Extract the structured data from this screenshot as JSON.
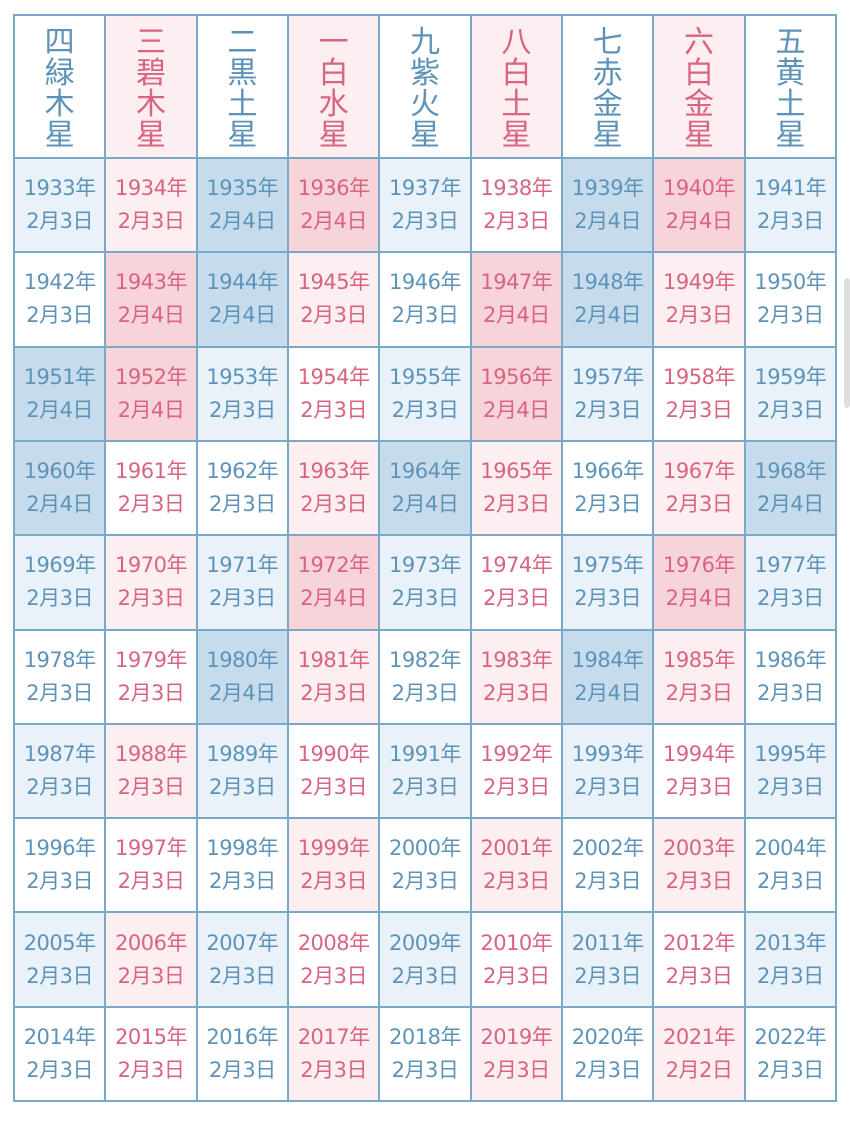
{
  "headers": [
    "四緑木星",
    "三碧木星",
    "二黒土星",
    "一白水星",
    "九紫火星",
    "八白土星",
    "七赤金星",
    "六白金星",
    "五黄土星"
  ],
  "header_colors": [
    "blue",
    "pink",
    "blue",
    "pink",
    "blue",
    "pink",
    "blue",
    "pink",
    "blue"
  ],
  "rows": [
    [
      {
        "year": "1933年",
        "date": "2月3日"
      },
      {
        "year": "1934年",
        "date": "2月3日"
      },
      {
        "year": "1935年",
        "date": "2月4日"
      },
      {
        "year": "1936年",
        "date": "2月4日"
      },
      {
        "year": "1937年",
        "date": "2月3日"
      },
      {
        "year": "1938年",
        "date": "2月3日"
      },
      {
        "year": "1939年",
        "date": "2月4日"
      },
      {
        "year": "1940年",
        "date": "2月4日"
      },
      {
        "year": "1941年",
        "date": "2月3日"
      }
    ],
    [
      {
        "year": "1942年",
        "date": "2月3日"
      },
      {
        "year": "1943年",
        "date": "2月4日"
      },
      {
        "year": "1944年",
        "date": "2月4日"
      },
      {
        "year": "1945年",
        "date": "2月3日"
      },
      {
        "year": "1946年",
        "date": "2月3日"
      },
      {
        "year": "1947年",
        "date": "2月4日"
      },
      {
        "year": "1948年",
        "date": "2月4日"
      },
      {
        "year": "1949年",
        "date": "2月3日"
      },
      {
        "year": "1950年",
        "date": "2月3日"
      }
    ],
    [
      {
        "year": "1951年",
        "date": "2月4日"
      },
      {
        "year": "1952年",
        "date": "2月4日"
      },
      {
        "year": "1953年",
        "date": "2月3日"
      },
      {
        "year": "1954年",
        "date": "2月3日"
      },
      {
        "year": "1955年",
        "date": "2月3日"
      },
      {
        "year": "1956年",
        "date": "2月4日"
      },
      {
        "year": "1957年",
        "date": "2月3日"
      },
      {
        "year": "1958年",
        "date": "2月3日"
      },
      {
        "year": "1959年",
        "date": "2月3日"
      }
    ],
    [
      {
        "year": "1960年",
        "date": "2月4日"
      },
      {
        "year": "1961年",
        "date": "2月3日"
      },
      {
        "year": "1962年",
        "date": "2月3日"
      },
      {
        "year": "1963年",
        "date": "2月3日"
      },
      {
        "year": "1964年",
        "date": "2月4日"
      },
      {
        "year": "1965年",
        "date": "2月3日"
      },
      {
        "year": "1966年",
        "date": "2月3日"
      },
      {
        "year": "1967年",
        "date": "2月3日"
      },
      {
        "year": "1968年",
        "date": "2月4日"
      }
    ],
    [
      {
        "year": "1969年",
        "date": "2月3日"
      },
      {
        "year": "1970年",
        "date": "2月3日"
      },
      {
        "year": "1971年",
        "date": "2月3日"
      },
      {
        "year": "1972年",
        "date": "2月4日"
      },
      {
        "year": "1973年",
        "date": "2月3日"
      },
      {
        "year": "1974年",
        "date": "2月3日"
      },
      {
        "year": "1975年",
        "date": "2月3日"
      },
      {
        "year": "1976年",
        "date": "2月4日"
      },
      {
        "year": "1977年",
        "date": "2月3日"
      }
    ],
    [
      {
        "year": "1978年",
        "date": "2月3日"
      },
      {
        "year": "1979年",
        "date": "2月3日"
      },
      {
        "year": "1980年",
        "date": "2月4日"
      },
      {
        "year": "1981年",
        "date": "2月3日"
      },
      {
        "year": "1982年",
        "date": "2月3日"
      },
      {
        "year": "1983年",
        "date": "2月3日"
      },
      {
        "year": "1984年",
        "date": "2月4日"
      },
      {
        "year": "1985年",
        "date": "2月3日"
      },
      {
        "year": "1986年",
        "date": "2月3日"
      }
    ],
    [
      {
        "year": "1987年",
        "date": "2月3日"
      },
      {
        "year": "1988年",
        "date": "2月3日"
      },
      {
        "year": "1989年",
        "date": "2月3日"
      },
      {
        "year": "1990年",
        "date": "2月3日"
      },
      {
        "year": "1991年",
        "date": "2月3日"
      },
      {
        "year": "1992年",
        "date": "2月3日"
      },
      {
        "year": "1993年",
        "date": "2月3日"
      },
      {
        "year": "1994年",
        "date": "2月3日"
      },
      {
        "year": "1995年",
        "date": "2月3日"
      }
    ],
    [
      {
        "year": "1996年",
        "date": "2月3日"
      },
      {
        "year": "1997年",
        "date": "2月3日"
      },
      {
        "year": "1998年",
        "date": "2月3日"
      },
      {
        "year": "1999年",
        "date": "2月3日"
      },
      {
        "year": "2000年",
        "date": "2月3日"
      },
      {
        "year": "2001年",
        "date": "2月3日"
      },
      {
        "year": "2002年",
        "date": "2月3日"
      },
      {
        "year": "2003年",
        "date": "2月3日"
      },
      {
        "year": "2004年",
        "date": "2月3日"
      }
    ],
    [
      {
        "year": "2005年",
        "date": "2月3日"
      },
      {
        "year": "2006年",
        "date": "2月3日"
      },
      {
        "year": "2007年",
        "date": "2月3日"
      },
      {
        "year": "2008年",
        "date": "2月3日"
      },
      {
        "year": "2009年",
        "date": "2月3日"
      },
      {
        "year": "2010年",
        "date": "2月3日"
      },
      {
        "year": "2011年",
        "date": "2月3日"
      },
      {
        "year": "2012年",
        "date": "2月3日"
      },
      {
        "year": "2013年",
        "date": "2月3日"
      }
    ],
    [
      {
        "year": "2014年",
        "date": "2月3日"
      },
      {
        "year": "2015年",
        "date": "2月3日"
      },
      {
        "year": "2016年",
        "date": "2月3日"
      },
      {
        "year": "2017年",
        "date": "2月3日"
      },
      {
        "year": "2018年",
        "date": "2月3日"
      },
      {
        "year": "2019年",
        "date": "2月3日"
      },
      {
        "year": "2020年",
        "date": "2月3日"
      },
      {
        "year": "2021年",
        "date": "2月2日"
      },
      {
        "year": "2022年",
        "date": "2月3日"
      }
    ]
  ],
  "colors": {
    "border": "#7aa9c7",
    "text_blue": "#5d93b8",
    "text_pink": "#d8647f",
    "bg_light_blue": "#e9f2f9",
    "bg_dark_blue": "#c6dcec",
    "bg_light_pink": "#fdeef1",
    "bg_dark_pink": "#f7d3da"
  }
}
